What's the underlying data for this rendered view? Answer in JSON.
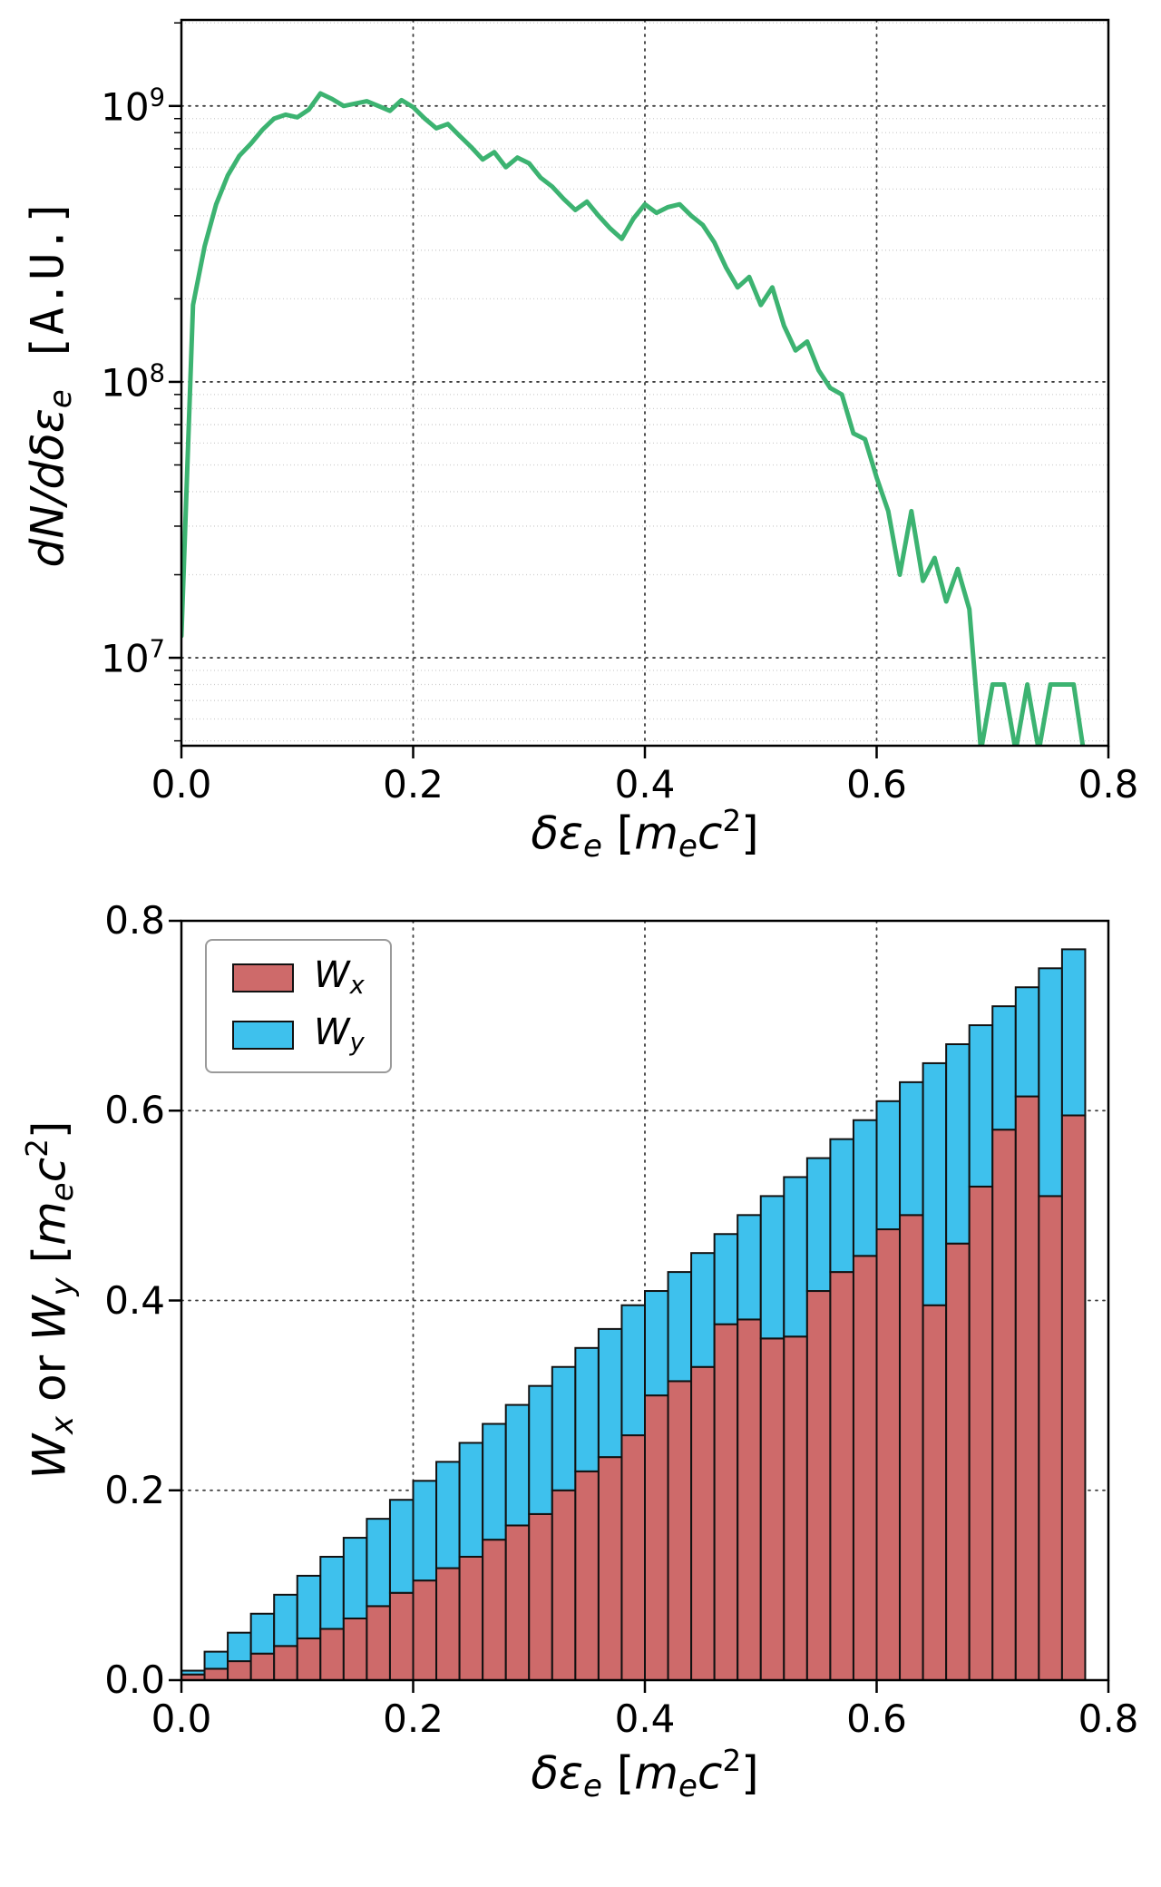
{
  "figure": {
    "background": "#ffffff"
  },
  "labels": {
    "top_ylabel": {
      "pre": "dN/dδε",
      "sub": "e",
      "post": " [A.U.]"
    },
    "xlabel": {
      "pre": "δε",
      "sub": "e",
      "open": " [",
      "m": "m",
      "msub": "e",
      "c": "c",
      "exp": "2",
      "close": "]"
    },
    "bottom_ylabel": {
      "w1": "W",
      "s1": "x",
      "mid": " or ",
      "w2": "W",
      "s2": "y",
      "open": " [",
      "m": "m",
      "msub": "e",
      "c": "c",
      "exp": "2",
      "close": "]"
    },
    "legend": {
      "wx_main": "W",
      "wx_sub": "x",
      "wy_main": "W",
      "wy_sub": "y"
    }
  },
  "chart_data": [
    {
      "type": "line",
      "title": "",
      "xlabel": "δε_e [m_e c^2]",
      "ylabel": "dN/dδε_e [A.U.]",
      "yscale": "log",
      "xlim": [
        0,
        0.8
      ],
      "ylim": [
        4800000.0,
        2050000000.0
      ],
      "grid": "both",
      "line_color": "#3CB371",
      "x_ticks": [
        {
          "label": "0.0",
          "value": 0.0
        },
        {
          "label": "0.2",
          "value": 0.2
        },
        {
          "label": "0.4",
          "value": 0.4
        },
        {
          "label": "0.6",
          "value": 0.6
        },
        {
          "label": "0.8",
          "value": 0.8
        }
      ],
      "y_ticks": [
        {
          "base": "10",
          "exp": "7",
          "value": 10000000.0
        },
        {
          "base": "10",
          "exp": "8",
          "value": 100000000.0
        },
        {
          "base": "10",
          "exp": "9",
          "value": 1000000000.0
        }
      ],
      "x": [
        0,
        0.01,
        0.02,
        0.03,
        0.04,
        0.05,
        0.06,
        0.07,
        0.08,
        0.09,
        0.1,
        0.11,
        0.12,
        0.13,
        0.14,
        0.15,
        0.16,
        0.17,
        0.18,
        0.19,
        0.2,
        0.21,
        0.22,
        0.23,
        0.24,
        0.25,
        0.26,
        0.27,
        0.28,
        0.29,
        0.3,
        0.31,
        0.32,
        0.33,
        0.34,
        0.35,
        0.36,
        0.37,
        0.38,
        0.39,
        0.4,
        0.41,
        0.42,
        0.43,
        0.44,
        0.45,
        0.46,
        0.47,
        0.48,
        0.49,
        0.5,
        0.51,
        0.52,
        0.53,
        0.54,
        0.55,
        0.56,
        0.57,
        0.58,
        0.59,
        0.6,
        0.61,
        0.62,
        0.63,
        0.64,
        0.65,
        0.66,
        0.67,
        0.68,
        0.69,
        0.7,
        0.71,
        0.72,
        0.73,
        0.74,
        0.75,
        0.76,
        0.77,
        0.78
      ],
      "y": [
        12000000.0,
        190000000.0,
        310000000.0,
        440000000.0,
        560000000.0,
        660000000.0,
        730000000.0,
        820000000.0,
        900000000.0,
        930000000.0,
        910000000.0,
        970000000.0,
        1110000000.0,
        1060000000.0,
        1000000000.0,
        1020000000.0,
        1040000000.0,
        1000000000.0,
        960000000.0,
        1050000000.0,
        990000000.0,
        900000000.0,
        830000000.0,
        860000000.0,
        780000000.0,
        710000000.0,
        640000000.0,
        680000000.0,
        600000000.0,
        650000000.0,
        620000000.0,
        550000000.0,
        510000000.0,
        460000000.0,
        420000000.0,
        450000000.0,
        400000000.0,
        360000000.0,
        330000000.0,
        390000000.0,
        440000000.0,
        410000000.0,
        430000000.0,
        440000000.0,
        400000000.0,
        370000000.0,
        320000000.0,
        260000000.0,
        220000000.0,
        240000000.0,
        190000000.0,
        220000000.0,
        160000000.0,
        130000000.0,
        140000000.0,
        110000000.0,
        95000000.0,
        90000000.0,
        65000000.0,
        62000000.0,
        45000000.0,
        34000000.0,
        20000000.0,
        34000000.0,
        19000000.0,
        23000000.0,
        16000000.0,
        21000000.0,
        15000000.0,
        4600000.0,
        8000000.0,
        8000000.0,
        4600000.0,
        8000000.0,
        4600000.0,
        8000000.0,
        8000000.0,
        8000000.0,
        4200000.0
      ]
    },
    {
      "type": "bar",
      "stacked": true,
      "title": "",
      "xlabel": "δε_e [m_e c^2]",
      "ylabel": "W_x or W_y [m_e c^2]",
      "xlim": [
        0,
        0.8
      ],
      "ylim": [
        0,
        0.8
      ],
      "grid": "major",
      "legend_position": "upper left",
      "bin_width": 0.02,
      "x_ticks": [
        {
          "label": "0.0",
          "value": 0.0
        },
        {
          "label": "0.2",
          "value": 0.2
        },
        {
          "label": "0.4",
          "value": 0.4
        },
        {
          "label": "0.6",
          "value": 0.6
        },
        {
          "label": "0.8",
          "value": 0.8
        }
      ],
      "y_ticks": [
        {
          "label": "0.0",
          "value": 0.0
        },
        {
          "label": "0.2",
          "value": 0.2
        },
        {
          "label": "0.4",
          "value": 0.4
        },
        {
          "label": "0.6",
          "value": 0.6
        },
        {
          "label": "0.8",
          "value": 0.8
        }
      ],
      "centers": [
        0.01,
        0.03,
        0.05,
        0.07,
        0.09,
        0.11,
        0.13,
        0.15,
        0.17,
        0.19,
        0.21,
        0.23,
        0.25,
        0.27,
        0.29,
        0.31,
        0.33,
        0.35,
        0.37,
        0.39,
        0.41,
        0.43,
        0.45,
        0.47,
        0.49,
        0.51,
        0.53,
        0.55,
        0.57,
        0.59,
        0.61,
        0.63,
        0.65,
        0.67,
        0.69,
        0.71,
        0.73,
        0.75,
        0.77
      ],
      "series": [
        {
          "name": "W_x",
          "color": "#ce6a6a",
          "values": [
            0.006,
            0.012,
            0.02,
            0.028,
            0.036,
            0.044,
            0.054,
            0.065,
            0.078,
            0.092,
            0.105,
            0.118,
            0.13,
            0.148,
            0.163,
            0.175,
            0.2,
            0.22,
            0.235,
            0.258,
            0.3,
            0.315,
            0.33,
            0.375,
            0.38,
            0.36,
            0.362,
            0.41,
            0.43,
            0.447,
            0.475,
            0.49,
            0.395,
            0.46,
            0.52,
            0.58,
            0.615,
            0.51,
            0.595
          ]
        },
        {
          "name": "W_y",
          "color": "#3ec1ed",
          "values": [
            0.004,
            0.018,
            0.03,
            0.042,
            0.054,
            0.066,
            0.076,
            0.085,
            0.092,
            0.098,
            0.105,
            0.112,
            0.12,
            0.122,
            0.127,
            0.135,
            0.13,
            0.13,
            0.135,
            0.137,
            0.11,
            0.115,
            0.12,
            0.095,
            0.11,
            0.15,
            0.168,
            0.14,
            0.14,
            0.143,
            0.135,
            0.14,
            0.255,
            0.21,
            0.17,
            0.13,
            0.115,
            0.24,
            0.175
          ]
        }
      ]
    }
  ]
}
